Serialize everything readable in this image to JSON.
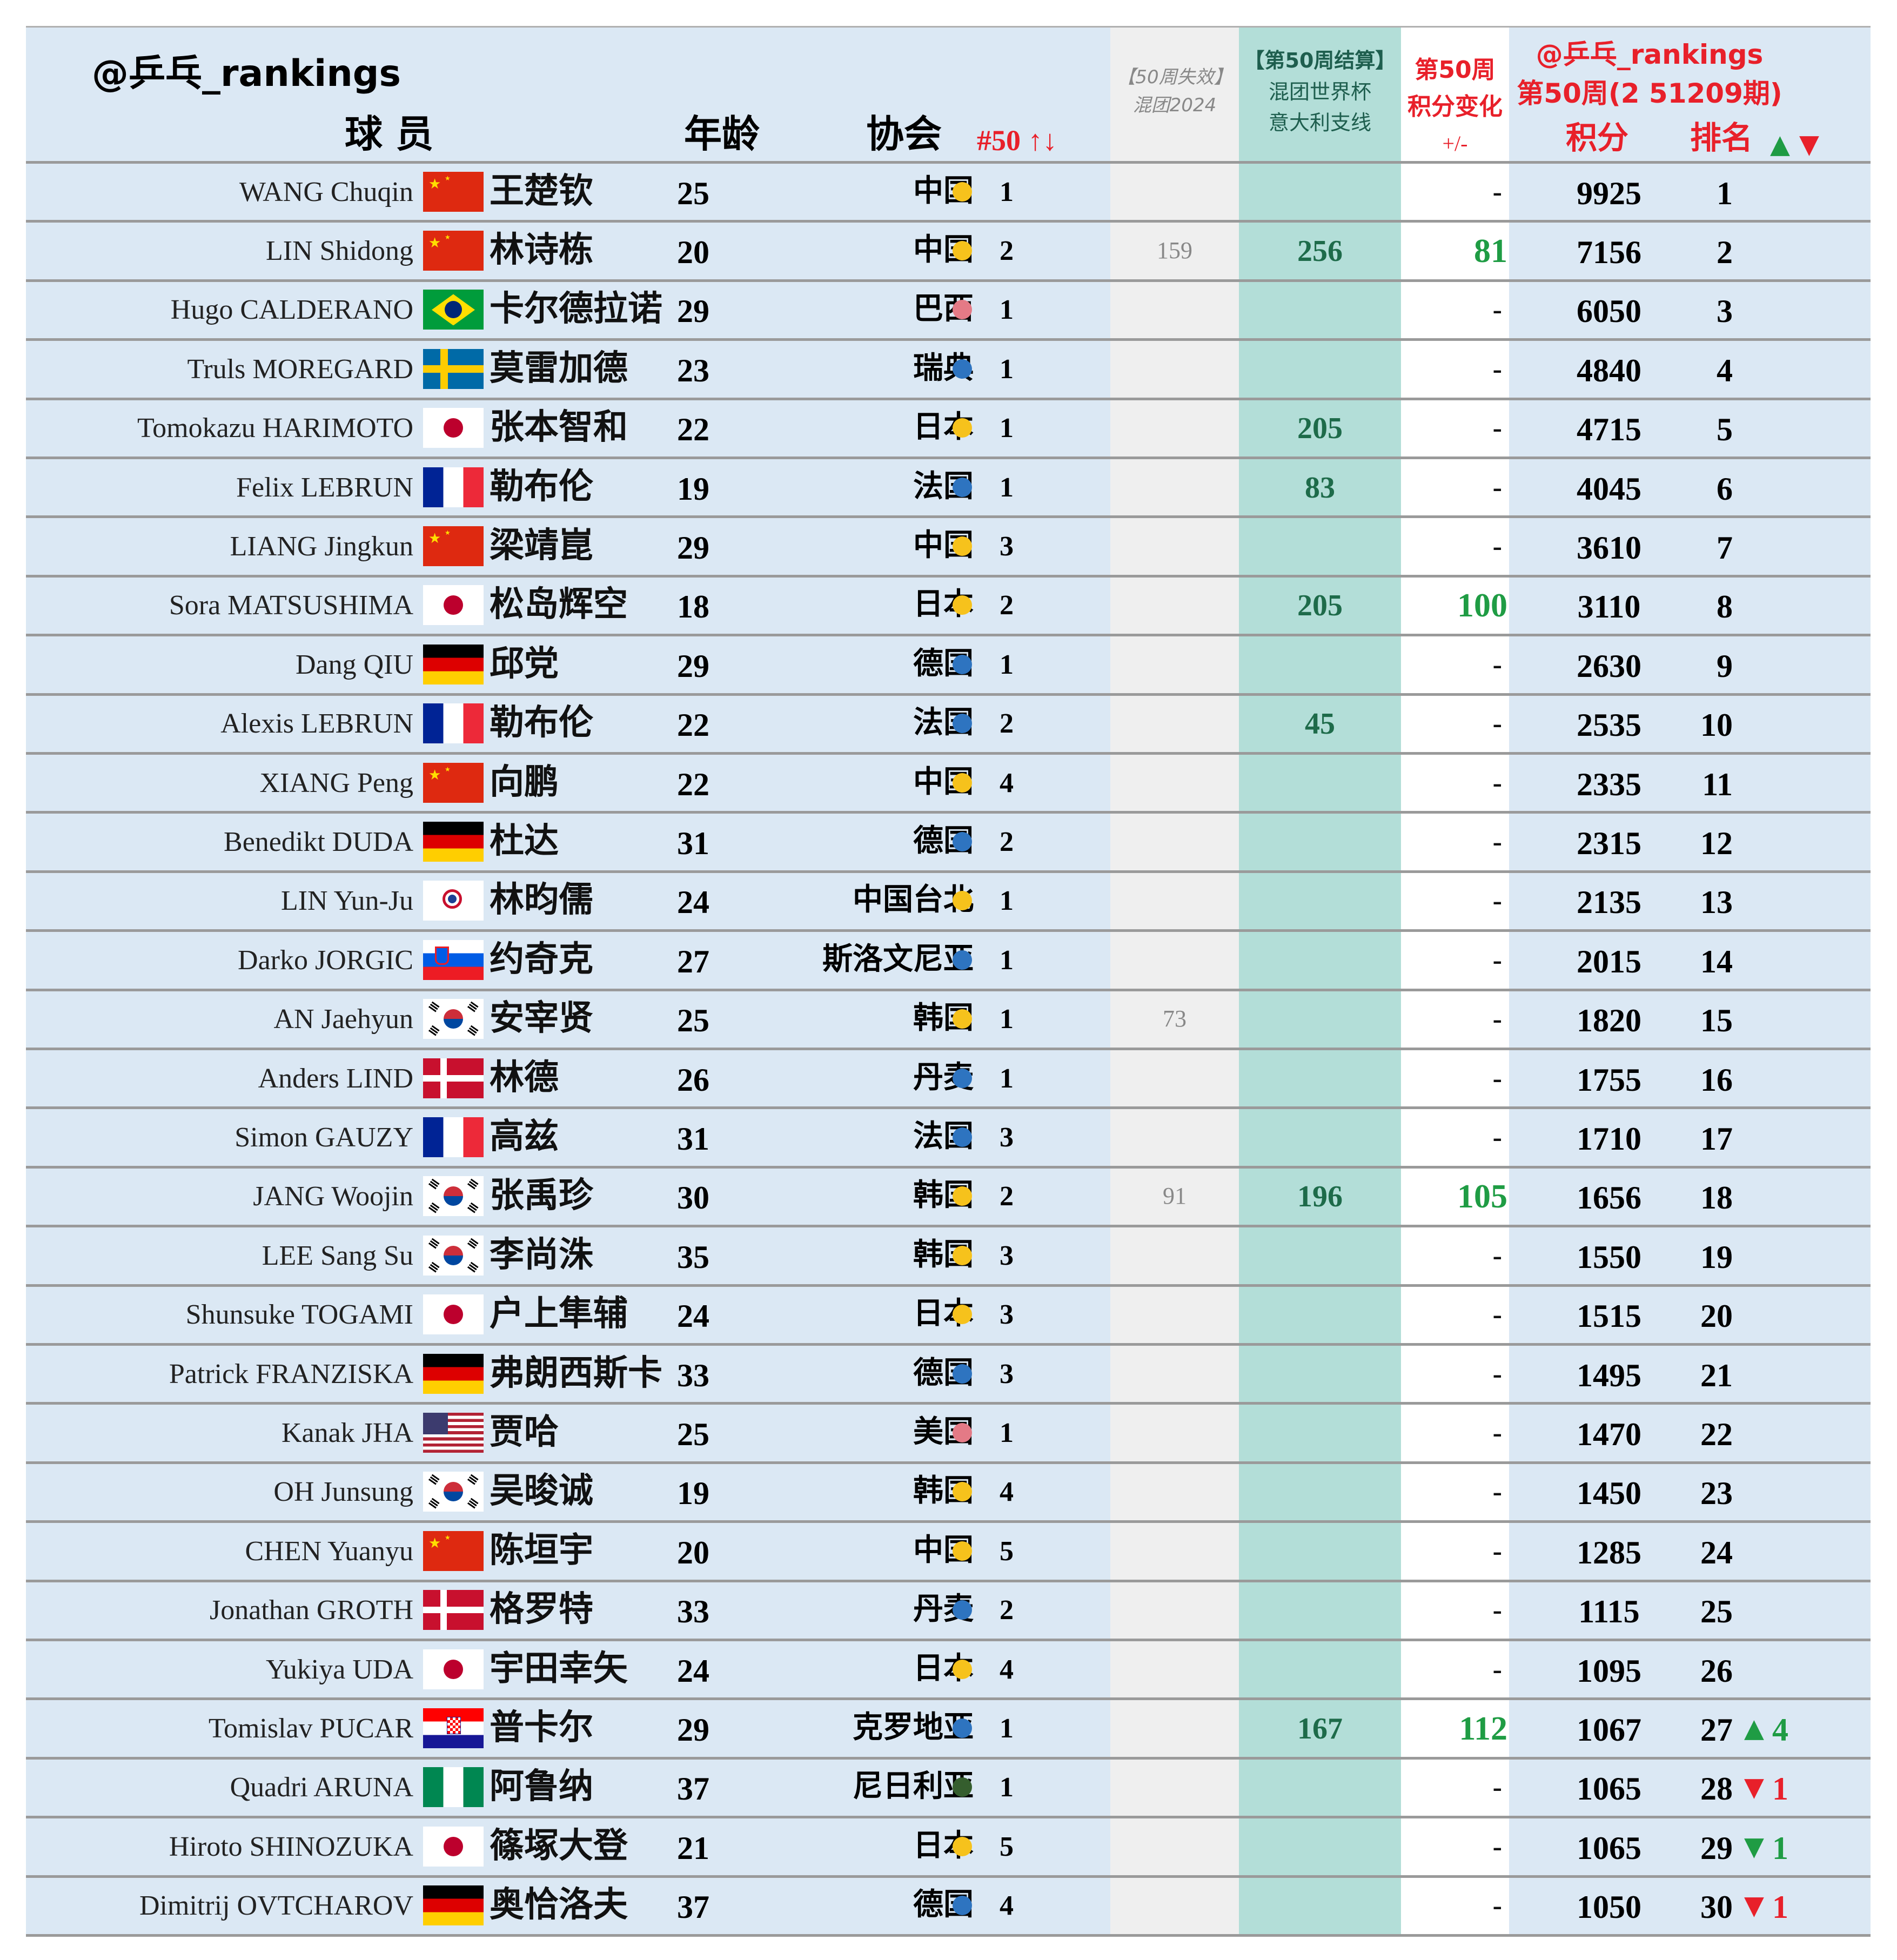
{
  "header": {
    "watermark": "@乒乓_rankings",
    "col_player": "球 员",
    "col_age": "年龄",
    "col_assoc": "协会",
    "col_nat_rank": "#50 ↑↓",
    "col_expired_line1": "【50周失效】",
    "col_expired_line2": "混团2024",
    "col_settle_line1": "【第50周结算】",
    "col_settle_line2": "混团世界杯",
    "col_settle_line3": "意大利支线",
    "col_change_line1": "第50周",
    "col_change_line2": "积分变化",
    "col_change_line3": "+/-",
    "col_total_line1": "@乒乓_rankings",
    "col_total_line2": "第50周(2 51209期)",
    "col_points": "积分",
    "col_rank": "排名",
    "up_symbol": "▲",
    "down_symbol": "▼"
  },
  "colors": {
    "row_bg": "#dbe8f4",
    "expired_bg": "#efefef",
    "settle_bg": "#b3ded8",
    "change_bg": "#ffffff",
    "dot_yellow": "#f6c21c",
    "dot_blue": "#2e74c0",
    "dot_pink": "#e47a86",
    "dot_green": "#355e2e",
    "red": "#e8202a",
    "green": "#1f9c44"
  },
  "rows": [
    {
      "en": "WANG Chuqin",
      "zh": "王楚钦",
      "flag": "china-flag",
      "age": "25",
      "assoc": "中国",
      "dot": "yellow",
      "nat": "1",
      "expired": "",
      "settle": "",
      "change": "-",
      "points": "9925",
      "rank": "1",
      "move": "",
      "move_n": ""
    },
    {
      "en": "LIN Shidong",
      "zh": "林诗栋",
      "flag": "china-flag",
      "age": "20",
      "assoc": "中国",
      "dot": "yellow",
      "nat": "2",
      "expired": "159",
      "settle": "256",
      "change": "81",
      "points": "7156",
      "rank": "2",
      "move": "",
      "move_n": ""
    },
    {
      "en": "Hugo CALDERANO",
      "zh": "卡尔德拉诺",
      "flag": "brazil-flag",
      "age": "29",
      "assoc": "巴西",
      "dot": "pink",
      "nat": "1",
      "expired": "",
      "settle": "",
      "change": "-",
      "points": "6050",
      "rank": "3",
      "move": "",
      "move_n": ""
    },
    {
      "en": "Truls MOREGARD",
      "zh": "莫雷加德",
      "flag": "sweden-flag",
      "age": "23",
      "assoc": "瑞典",
      "dot": "blue",
      "nat": "1",
      "expired": "",
      "settle": "",
      "change": "-",
      "points": "4840",
      "rank": "4",
      "move": "",
      "move_n": ""
    },
    {
      "en": "Tomokazu HARIMOTO",
      "zh": "张本智和",
      "flag": "japan-flag",
      "age": "22",
      "assoc": "日本",
      "dot": "yellow",
      "nat": "1",
      "expired": "",
      "settle": "205",
      "change": "-",
      "points": "4715",
      "rank": "5",
      "move": "",
      "move_n": ""
    },
    {
      "en": "Felix LEBRUN",
      "zh": "勒布伦",
      "flag": "france-flag",
      "age": "19",
      "assoc": "法国",
      "dot": "blue",
      "nat": "1",
      "expired": "",
      "settle": "83",
      "change": "-",
      "points": "4045",
      "rank": "6",
      "move": "",
      "move_n": ""
    },
    {
      "en": "LIANG Jingkun",
      "zh": "梁靖崑",
      "flag": "china-flag",
      "age": "29",
      "assoc": "中国",
      "dot": "yellow",
      "nat": "3",
      "expired": "",
      "settle": "",
      "change": "-",
      "points": "3610",
      "rank": "7",
      "move": "",
      "move_n": ""
    },
    {
      "en": "Sora MATSUSHIMA",
      "zh": "松岛辉空",
      "flag": "japan-flag",
      "age": "18",
      "assoc": "日本",
      "dot": "yellow",
      "nat": "2",
      "expired": "",
      "settle": "205",
      "change": "100",
      "points": "3110",
      "rank": "8",
      "move": "",
      "move_n": ""
    },
    {
      "en": "Dang QIU",
      "zh": "邱党",
      "flag": "germany-flag",
      "age": "29",
      "assoc": "德国",
      "dot": "blue",
      "nat": "1",
      "expired": "",
      "settle": "",
      "change": "-",
      "points": "2630",
      "rank": "9",
      "move": "",
      "move_n": ""
    },
    {
      "en": "Alexis LEBRUN",
      "zh": "勒布伦",
      "flag": "france-flag",
      "age": "22",
      "assoc": "法国",
      "dot": "blue",
      "nat": "2",
      "expired": "",
      "settle": "45",
      "change": "-",
      "points": "2535",
      "rank": "10",
      "move": "",
      "move_n": ""
    },
    {
      "en": "XIANG Peng",
      "zh": "向鹏",
      "flag": "china-flag",
      "age": "22",
      "assoc": "中国",
      "dot": "yellow",
      "nat": "4",
      "expired": "",
      "settle": "",
      "change": "-",
      "points": "2335",
      "rank": "11",
      "move": "",
      "move_n": ""
    },
    {
      "en": "Benedikt DUDA",
      "zh": "杜达",
      "flag": "germany-flag",
      "age": "31",
      "assoc": "德国",
      "dot": "blue",
      "nat": "2",
      "expired": "",
      "settle": "",
      "change": "-",
      "points": "2315",
      "rank": "12",
      "move": "",
      "move_n": ""
    },
    {
      "en": "LIN Yun-Ju",
      "zh": "林昀儒",
      "flag": "chinese-taipei-flag",
      "age": "24",
      "assoc": "中国台北",
      "dot": "yellow",
      "nat": "1",
      "expired": "",
      "settle": "",
      "change": "-",
      "points": "2135",
      "rank": "13",
      "move": "",
      "move_n": ""
    },
    {
      "en": "Darko JORGIC",
      "zh": "约奇克",
      "flag": "slovenia-flag",
      "age": "27",
      "assoc": "斯洛文尼亚",
      "dot": "blue",
      "nat": "1",
      "expired": "",
      "settle": "",
      "change": "-",
      "points": "2015",
      "rank": "14",
      "move": "",
      "move_n": ""
    },
    {
      "en": "AN Jaehyun",
      "zh": "安宰贤",
      "flag": "korea-flag",
      "age": "25",
      "assoc": "韩国",
      "dot": "yellow",
      "nat": "1",
      "expired": "73",
      "settle": "",
      "change": "-",
      "points": "1820",
      "rank": "15",
      "move": "",
      "move_n": ""
    },
    {
      "en": "Anders LIND",
      "zh": "林德",
      "flag": "denmark-flag",
      "age": "26",
      "assoc": "丹麦",
      "dot": "blue",
      "nat": "1",
      "expired": "",
      "settle": "",
      "change": "-",
      "points": "1755",
      "rank": "16",
      "move": "",
      "move_n": ""
    },
    {
      "en": "Simon GAUZY",
      "zh": "高兹",
      "flag": "france-flag",
      "age": "31",
      "assoc": "法国",
      "dot": "blue",
      "nat": "3",
      "expired": "",
      "settle": "",
      "change": "-",
      "points": "1710",
      "rank": "17",
      "move": "",
      "move_n": ""
    },
    {
      "en": "JANG Woojin",
      "zh": "张禹珍",
      "flag": "korea-flag",
      "age": "30",
      "assoc": "韩国",
      "dot": "yellow",
      "nat": "2",
      "expired": "91",
      "settle": "196",
      "change": "105",
      "points": "1656",
      "rank": "18",
      "move": "",
      "move_n": ""
    },
    {
      "en": "LEE Sang Su",
      "zh": "李尚洙",
      "flag": "korea-flag",
      "age": "35",
      "assoc": "韩国",
      "dot": "yellow",
      "nat": "3",
      "expired": "",
      "settle": "",
      "change": "-",
      "points": "1550",
      "rank": "19",
      "move": "",
      "move_n": ""
    },
    {
      "en": "Shunsuke TOGAMI",
      "zh": "户上隼辅",
      "flag": "japan-flag",
      "age": "24",
      "assoc": "日本",
      "dot": "yellow",
      "nat": "3",
      "expired": "",
      "settle": "",
      "change": "-",
      "points": "1515",
      "rank": "20",
      "move": "",
      "move_n": ""
    },
    {
      "en": "Patrick FRANZISKA",
      "zh": "弗朗西斯卡",
      "flag": "germany-flag",
      "age": "33",
      "assoc": "德国",
      "dot": "blue",
      "nat": "3",
      "expired": "",
      "settle": "",
      "change": "-",
      "points": "1495",
      "rank": "21",
      "move": "",
      "move_n": ""
    },
    {
      "en": "Kanak JHA",
      "zh": "贾哈",
      "flag": "usa-flag",
      "age": "25",
      "assoc": "美国",
      "dot": "pink",
      "nat": "1",
      "expired": "",
      "settle": "",
      "change": "-",
      "points": "1470",
      "rank": "22",
      "move": "",
      "move_n": ""
    },
    {
      "en": "OH Junsung",
      "zh": "吴晙诚",
      "flag": "korea-flag",
      "age": "19",
      "assoc": "韩国",
      "dot": "yellow",
      "nat": "4",
      "expired": "",
      "settle": "",
      "change": "-",
      "points": "1450",
      "rank": "23",
      "move": "",
      "move_n": ""
    },
    {
      "en": "CHEN Yuanyu",
      "zh": "陈垣宇",
      "flag": "china-flag",
      "age": "20",
      "assoc": "中国",
      "dot": "yellow",
      "nat": "5",
      "expired": "",
      "settle": "",
      "change": "-",
      "points": "1285",
      "rank": "24",
      "move": "",
      "move_n": ""
    },
    {
      "en": "Jonathan GROTH",
      "zh": "格罗特",
      "flag": "denmark-flag",
      "age": "33",
      "assoc": "丹麦",
      "dot": "blue",
      "nat": "2",
      "expired": "",
      "settle": "",
      "change": "-",
      "points": "1115",
      "rank": "25",
      "move": "",
      "move_n": ""
    },
    {
      "en": "Yukiya UDA",
      "zh": "宇田幸矢",
      "flag": "japan-flag",
      "age": "24",
      "assoc": "日本",
      "dot": "yellow",
      "nat": "4",
      "expired": "",
      "settle": "",
      "change": "-",
      "points": "1095",
      "rank": "26",
      "move": "",
      "move_n": ""
    },
    {
      "en": "Tomislav PUCAR",
      "zh": "普卡尔",
      "flag": "croatia-flag",
      "age": "29",
      "assoc": "克罗地亚",
      "dot": "blue",
      "nat": "1",
      "expired": "",
      "settle": "167",
      "change": "112",
      "points": "1067",
      "rank": "27",
      "move": "up",
      "move_n": "4"
    },
    {
      "en": "Quadri ARUNA",
      "zh": "阿鲁纳",
      "flag": "nigeria-flag",
      "age": "37",
      "assoc": "尼日利亚",
      "dot": "green",
      "nat": "1",
      "expired": "",
      "settle": "",
      "change": "-",
      "points": "1065",
      "rank": "28",
      "move": "down",
      "move_n": "1"
    },
    {
      "en": "Hiroto SHINOZUKA",
      "zh": "篠塚大登",
      "flag": "japan-flag",
      "age": "21",
      "assoc": "日本",
      "dot": "yellow",
      "nat": "5",
      "expired": "",
      "settle": "",
      "change": "-",
      "points": "1065",
      "rank": "29",
      "move": "down-green",
      "move_n": "1"
    },
    {
      "en": "Dimitrij OVTCHAROV",
      "zh": "奥恰洛夫",
      "flag": "germany-flag",
      "age": "37",
      "assoc": "德国",
      "dot": "blue",
      "nat": "4",
      "expired": "",
      "settle": "",
      "change": "-",
      "points": "1050",
      "rank": "30",
      "move": "down",
      "move_n": "1"
    }
  ]
}
